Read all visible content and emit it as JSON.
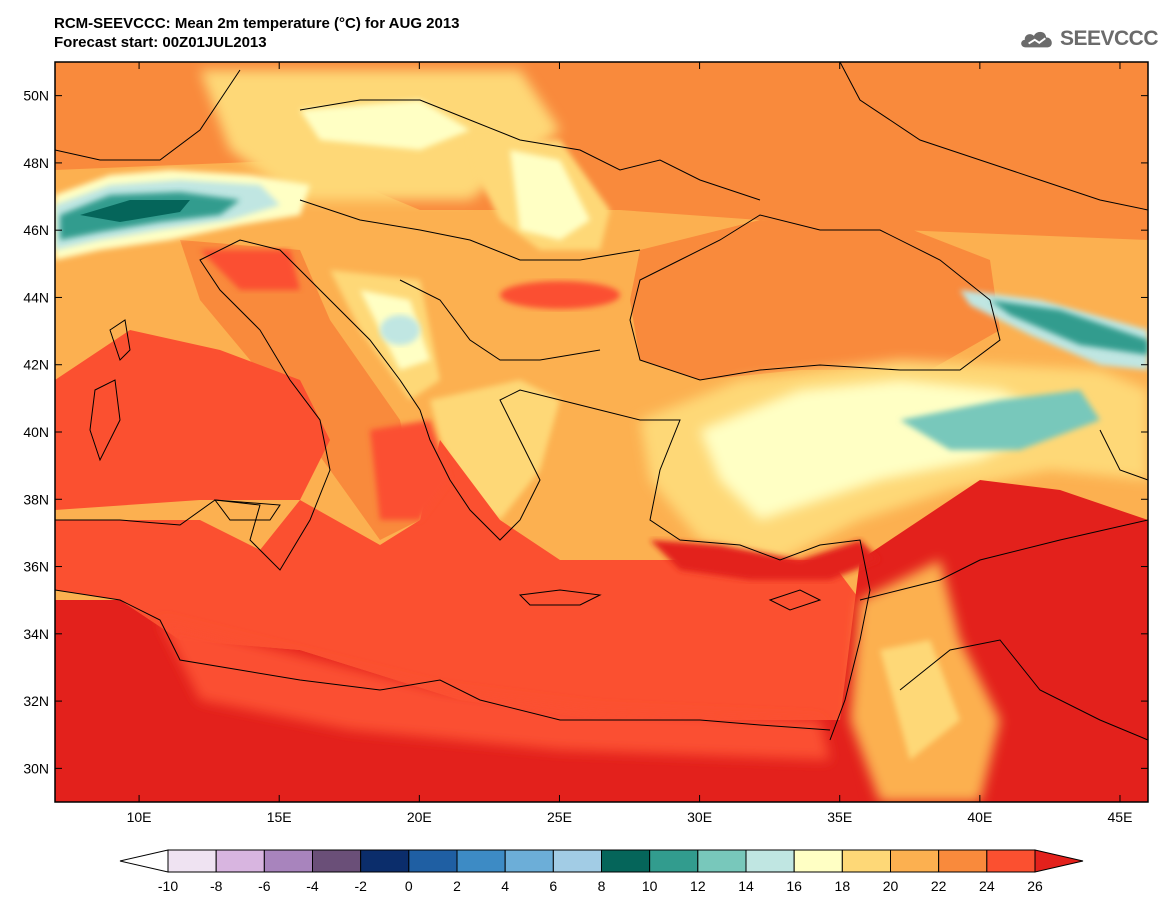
{
  "header": {
    "title_line1": "RCM-SEEVCCC: Mean 2m temperature (°C) for AUG 2013",
    "title_line2": "Forecast start: 00Z01JUL2013"
  },
  "logo": {
    "text": "SEEVCCC",
    "icon": "cloud-icon"
  },
  "map": {
    "lon_range": [
      7,
      46
    ],
    "lat_range": [
      29,
      51
    ],
    "lat_ticks": [
      {
        "value": 30,
        "label": "30N"
      },
      {
        "value": 32,
        "label": "32N"
      },
      {
        "value": 34,
        "label": "34N"
      },
      {
        "value": 36,
        "label": "36N"
      },
      {
        "value": 38,
        "label": "38N"
      },
      {
        "value": 40,
        "label": "40N"
      },
      {
        "value": 42,
        "label": "42N"
      },
      {
        "value": 44,
        "label": "44N"
      },
      {
        "value": 46,
        "label": "46N"
      },
      {
        "value": 48,
        "label": "48N"
      },
      {
        "value": 50,
        "label": "50N"
      }
    ],
    "lon_ticks": [
      {
        "value": 10,
        "label": "10E"
      },
      {
        "value": 15,
        "label": "15E"
      },
      {
        "value": 20,
        "label": "20E"
      },
      {
        "value": 25,
        "label": "25E"
      },
      {
        "value": 30,
        "label": "30E"
      },
      {
        "value": 35,
        "label": "35E"
      },
      {
        "value": 40,
        "label": "40E"
      },
      {
        "value": 45,
        "label": "45E"
      }
    ]
  },
  "colorbar": {
    "levels": [
      "-10",
      "-8",
      "-6",
      "-4",
      "-2",
      "0",
      "2",
      "4",
      "6",
      "8",
      "10",
      "12",
      "14",
      "16",
      "18",
      "20",
      "22",
      "24",
      "26"
    ],
    "under_color": "#ffffff",
    "over_color": "#e3211c",
    "colors": [
      "#efe3f2",
      "#d8b5e0",
      "#a884bd",
      "#6a4f78",
      "#0b2d6b",
      "#1f5fa3",
      "#3d8bc5",
      "#6caed8",
      "#a2cce5",
      "#05655a",
      "#329c8e",
      "#78c8bb",
      "#c0e6e2",
      "#ffffc4",
      "#fed877",
      "#fcb050",
      "#f98a3c",
      "#fb5030"
    ]
  }
}
